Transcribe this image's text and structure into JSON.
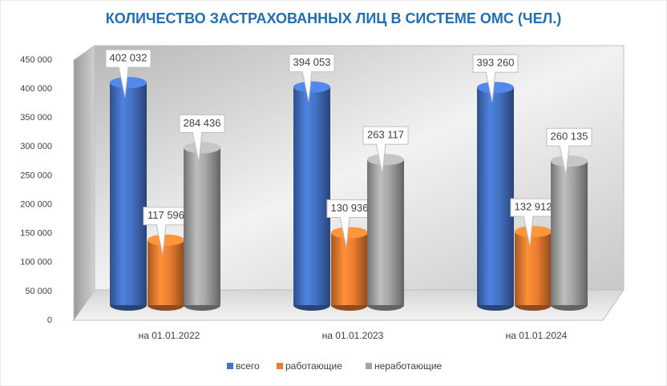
{
  "chart_data": {
    "type": "cylinder",
    "title": "КОЛИЧЕСТВО ЗАСТРАХОВАННЫХ ЛИЦ В СИСТЕМЕ ОМС (ЧЕЛ.)",
    "categories": [
      "на 01.01.2022",
      "на 01.01.2023",
      "на 01.01.2024"
    ],
    "series": [
      {
        "name": "всего",
        "color": "#4472c4",
        "values": [
          402032,
          394053,
          393260
        ],
        "value_labels": [
          "402 032",
          "394 053",
          "393 260"
        ]
      },
      {
        "name": "работающие",
        "color": "#ed7d31",
        "values": [
          117596,
          130936,
          132912
        ],
        "value_labels": [
          "117 596",
          "130 936",
          "132 912"
        ]
      },
      {
        "name": "неработающие",
        "color": "#a5a5a5",
        "values": [
          284436,
          263117,
          260135
        ],
        "value_labels": [
          "284 436",
          "263 117",
          "260 135"
        ]
      }
    ],
    "ylim": [
      0,
      450000
    ],
    "yticks": [
      0,
      {
        "value": 50000,
        "label": "50 000"
      },
      {
        "value": 100000,
        "label": "100 000"
      },
      {
        "value": 150000,
        "label": "150 000"
      },
      {
        "value": 200000,
        "label": "200 000"
      },
      {
        "value": 250000,
        "label": "250 000"
      },
      {
        "value": 300000,
        "label": "300 000"
      },
      {
        "value": 350000,
        "label": "350 000"
      },
      {
        "value": 400000,
        "label": "400 000"
      },
      {
        "value": 450000,
        "label": "450 000"
      }
    ],
    "legend": "bottom"
  }
}
